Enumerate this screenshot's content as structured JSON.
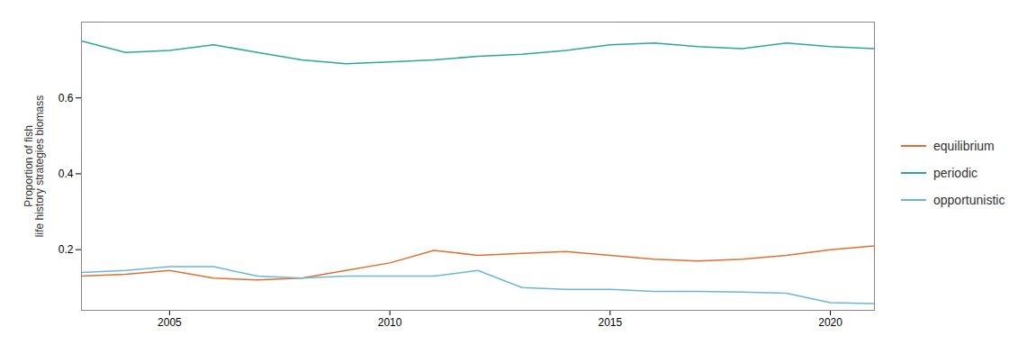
{
  "chart_data": {
    "type": "line",
    "ylabel": "Proportion of fish\nlife history strategies biomass",
    "x": [
      2003,
      2004,
      2005,
      2006,
      2007,
      2008,
      2009,
      2010,
      2011,
      2012,
      2013,
      2014,
      2015,
      2016,
      2017,
      2018,
      2019,
      2020,
      2021
    ],
    "series": [
      {
        "name": "equilibrium",
        "color": "#e07030",
        "values": [
          0.13,
          0.135,
          0.145,
          0.125,
          0.12,
          0.125,
          0.145,
          0.165,
          0.198,
          0.185,
          0.19,
          0.195,
          0.185,
          0.175,
          0.17,
          0.175,
          0.185,
          0.2,
          0.21
        ]
      },
      {
        "name": "periodic",
        "color": "#2ca89a",
        "values": [
          0.75,
          0.72,
          0.725,
          0.74,
          0.72,
          0.7,
          0.69,
          0.695,
          0.7,
          0.71,
          0.715,
          0.725,
          0.74,
          0.745,
          0.735,
          0.73,
          0.745,
          0.735,
          0.73
        ]
      },
      {
        "name": "opportunistic",
        "color": "#6ab8d8",
        "values": [
          0.14,
          0.145,
          0.155,
          0.155,
          0.13,
          0.125,
          0.13,
          0.13,
          0.13,
          0.145,
          0.1,
          0.095,
          0.095,
          0.09,
          0.09,
          0.088,
          0.085,
          0.06,
          0.058
        ]
      }
    ],
    "xlim": [
      2003,
      2021
    ],
    "xticks": [
      2005,
      2010,
      2015,
      2020
    ],
    "ylim": [
      0.04,
      0.8
    ],
    "yticks": [
      0.2,
      0.4,
      0.6
    ],
    "grid": false,
    "legend": "right"
  }
}
